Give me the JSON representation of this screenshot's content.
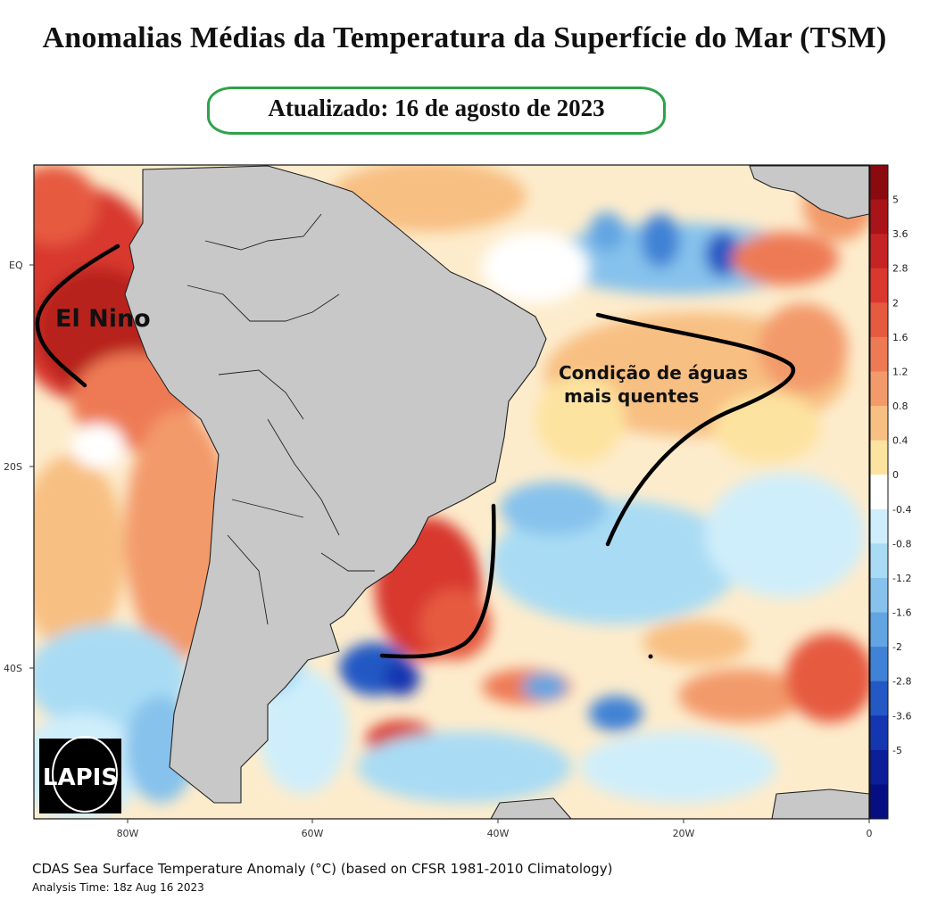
{
  "title": "Anomalias Médias da Temperatura da Superfície do Mar (TSM)",
  "updated": "Atualizado: 16 de agosto de 2023",
  "annotations": {
    "el_nino": "El Nino",
    "warm_line1": "Condição de águas",
    "warm_line2": "mais quentes"
  },
  "axes": {
    "lat_ticks": [
      "EQ",
      "20S",
      "40S"
    ],
    "lon_ticks": [
      "80W",
      "60W",
      "40W",
      "20W",
      "0"
    ]
  },
  "colorbar": {
    "labels": [
      "5",
      "3.6",
      "2.8",
      "2",
      "1.6",
      "1.2",
      "0.8",
      "0.4",
      "0",
      "-0.4",
      "-0.8",
      "-1.2",
      "-1.6",
      "-2",
      "-2.8",
      "-3.6",
      "-5"
    ],
    "colors": [
      "#8b0a10",
      "#a81418",
      "#c42424",
      "#d8382e",
      "#e65a40",
      "#ee7a55",
      "#f39a6a",
      "#f8bf82",
      "#fde3a0",
      "#ffffff",
      "#cfeefb",
      "#a9dcf4",
      "#86c2ec",
      "#62a5e2",
      "#3f82d6",
      "#2458c4",
      "#1436b0",
      "#0c1e98",
      "#060f82"
    ]
  },
  "logo": "LAPIS",
  "footer": {
    "line1": "CDAS Sea Surface Temperature Anomaly (°C) (based on CFSR 1981-2010 Climatology)",
    "line2": "Analysis Time: 18z Aug 16 2023"
  }
}
